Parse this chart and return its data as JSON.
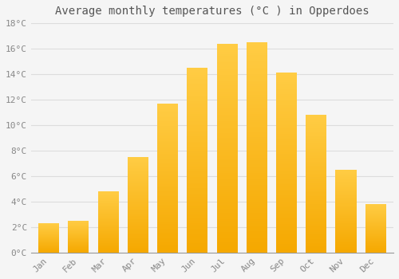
{
  "title": "Average monthly temperatures (°C ) in Opperdoes",
  "months": [
    "Jan",
    "Feb",
    "Mar",
    "Apr",
    "May",
    "Jun",
    "Jul",
    "Aug",
    "Sep",
    "Oct",
    "Nov",
    "Dec"
  ],
  "values": [
    2.3,
    2.5,
    4.8,
    7.5,
    11.7,
    14.5,
    16.4,
    16.5,
    14.1,
    10.8,
    6.5,
    3.8
  ],
  "bar_color_bottom": "#F5A800",
  "bar_color_top": "#FFCC44",
  "background_color": "#F5F5F5",
  "grid_color": "#DDDDDD",
  "ylim": [
    0,
    18
  ],
  "yticks": [
    0,
    2,
    4,
    6,
    8,
    10,
    12,
    14,
    16,
    18
  ],
  "ytick_labels": [
    "0°C",
    "2°C",
    "4°C",
    "6°C",
    "8°C",
    "10°C",
    "12°C",
    "14°C",
    "16°C",
    "18°C"
  ],
  "title_fontsize": 10,
  "tick_fontsize": 8,
  "font_color": "#888888",
  "bar_width": 0.7,
  "n_gradient_steps": 100
}
